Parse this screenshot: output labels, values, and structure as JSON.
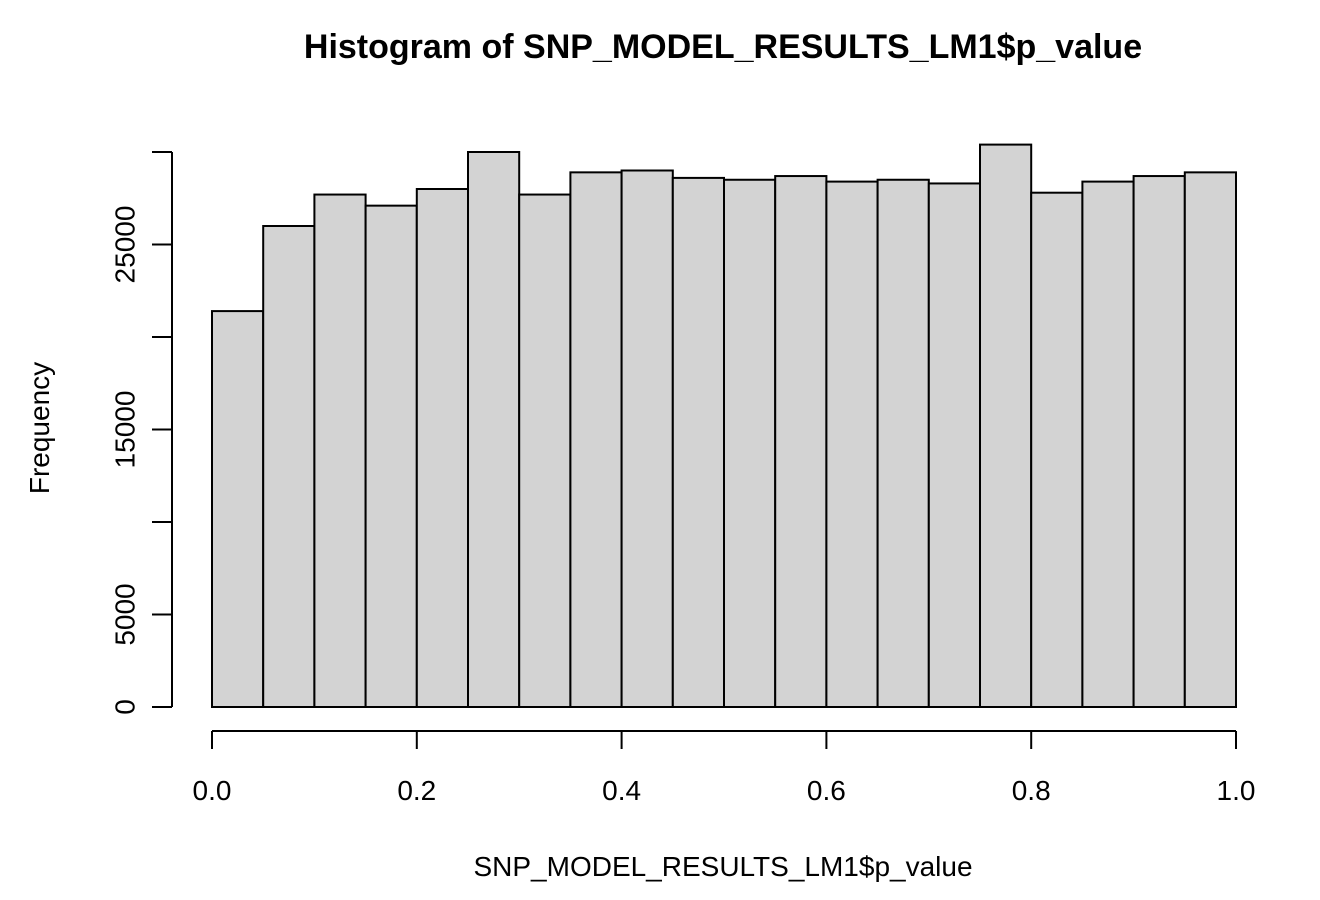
{
  "chart_data": {
    "type": "bar",
    "title": "Histogram of SNP_MODEL_RESULTS_LM1$p_value",
    "xlabel": "SNP_MODEL_RESULTS_LM1$p_value",
    "ylabel": "Frequency",
    "bar_color": "#d3d3d3",
    "bin_edges": [
      0.0,
      0.05,
      0.1,
      0.15,
      0.2,
      0.25,
      0.3,
      0.35,
      0.4,
      0.45,
      0.5,
      0.55,
      0.6,
      0.65,
      0.7,
      0.75,
      0.8,
      0.85,
      0.9,
      0.95,
      1.0
    ],
    "values": [
      21400,
      26000,
      27700,
      27100,
      28000,
      30000,
      27700,
      28900,
      29000,
      28600,
      28500,
      28700,
      28400,
      28500,
      28300,
      30400,
      27800,
      28400,
      28700,
      28900
    ],
    "xlim": [
      0.0,
      1.0
    ],
    "ylim": [
      0,
      30000
    ],
    "x_ticks": [
      0.0,
      0.2,
      0.4,
      0.6,
      0.8,
      1.0
    ],
    "x_tick_labels": [
      "0.0",
      "0.2",
      "0.4",
      "0.6",
      "0.8",
      "1.0"
    ],
    "y_ticks": [
      0,
      5000,
      10000,
      15000,
      20000,
      25000,
      30000
    ],
    "y_tick_labels": [
      "0",
      "5000",
      "",
      "15000",
      "",
      "25000",
      ""
    ],
    "grid": false
  }
}
